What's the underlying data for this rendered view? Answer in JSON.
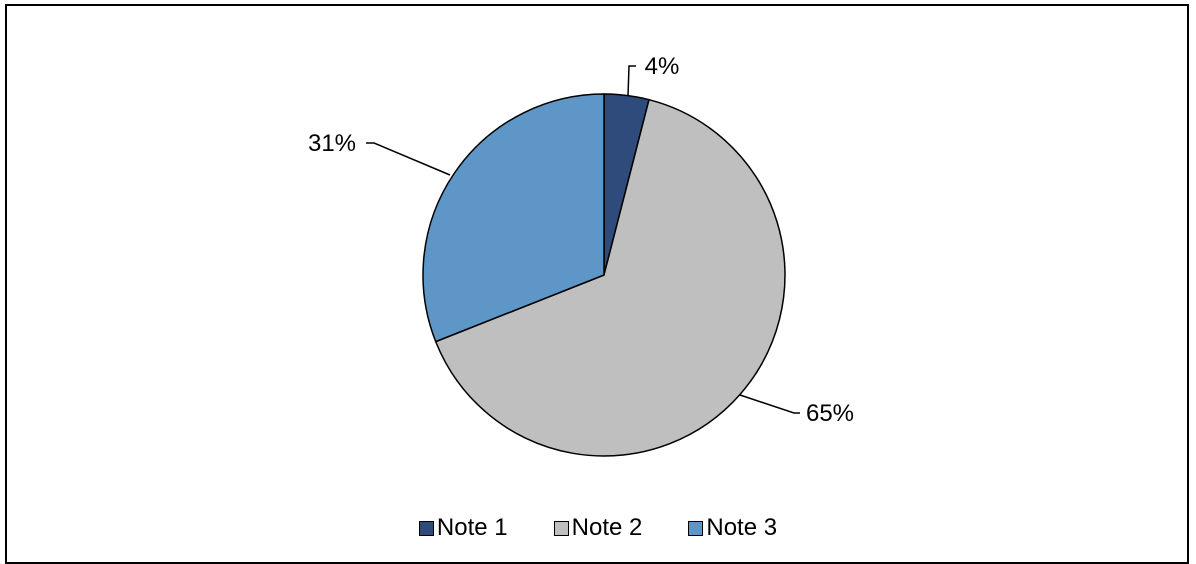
{
  "chart_data": {
    "type": "pie",
    "categories": [
      "Note 1",
      "Note 2",
      "Note 3"
    ],
    "values": [
      4,
      65,
      31
    ],
    "value_labels": [
      "4%",
      "65%",
      "31%"
    ],
    "colors": [
      "#2F4B7C",
      "#C0BFBF",
      "#5E96C8"
    ],
    "legend_position": "bottom",
    "start_angle_deg": 0,
    "direction": "clockwise"
  }
}
